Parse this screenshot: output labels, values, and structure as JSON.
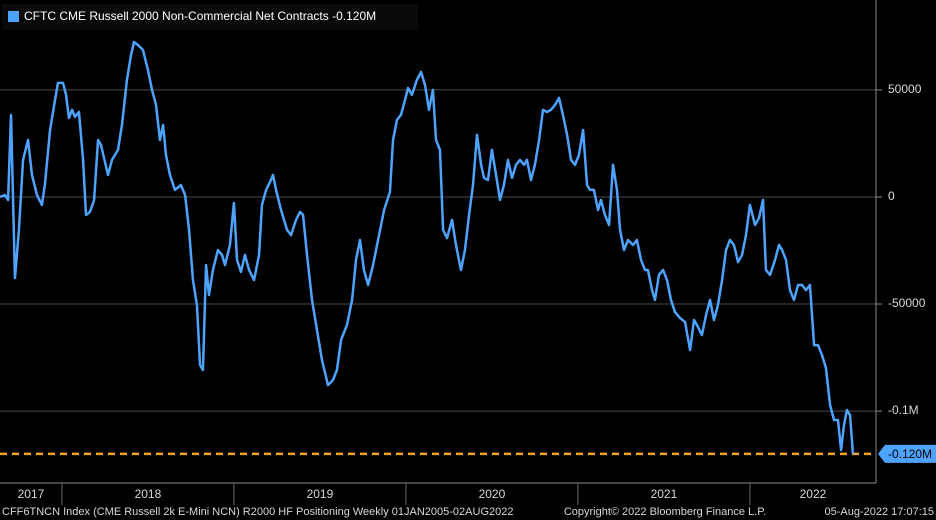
{
  "chart_data": {
    "type": "line",
    "series": [
      {
        "name": "CFTC CME Russell 2000 Non-Commercial Net Contracts",
        "color": "#4da3ff",
        "x": [
          2017.64,
          2017.669,
          2017.687,
          2017.704,
          2017.727,
          2017.75,
          2017.774,
          2017.803,
          2017.826,
          2017.855,
          2017.884,
          2017.902,
          2017.931,
          2017.96,
          2017.977,
          2018.006,
          2018.024,
          2018.041,
          2018.059,
          2018.076,
          2018.099,
          2018.123,
          2018.14,
          2018.163,
          2018.187,
          2018.21,
          2018.227,
          2018.245,
          2018.268,
          2018.291,
          2018.326,
          2018.349,
          2018.378,
          2018.402,
          2018.419,
          2018.442,
          2018.471,
          2018.5,
          2018.524,
          2018.547,
          2018.57,
          2018.588,
          2018.605,
          2018.628,
          2018.657,
          2018.692,
          2018.716,
          2018.739,
          2018.762,
          2018.785,
          2018.803,
          2018.82,
          2018.838,
          2018.855,
          2018.878,
          2018.907,
          2018.931,
          2018.948,
          2018.977,
          2019.0,
          2019.018,
          2019.041,
          2019.064,
          2019.088,
          2019.117,
          2019.146,
          2019.163,
          2019.187,
          2019.21,
          2019.227,
          2019.245,
          2019.274,
          2019.309,
          2019.332,
          2019.361,
          2019.384,
          2019.402,
          2019.425,
          2019.454,
          2019.483,
          2019.512,
          2019.547,
          2019.576,
          2019.599,
          2019.623,
          2019.657,
          2019.687,
          2019.71,
          2019.733,
          2019.756,
          2019.78,
          2019.809,
          2019.838,
          2019.873,
          2019.907,
          2019.925,
          2019.948,
          2019.971,
          2019.995,
          2020.012,
          2020.035,
          2020.064,
          2020.088,
          2020.111,
          2020.134,
          2020.157,
          2020.175,
          2020.198,
          2020.216,
          2020.239,
          2020.268,
          2020.291,
          2020.32,
          2020.343,
          2020.367,
          2020.39,
          2020.413,
          2020.437,
          2020.454,
          2020.477,
          2020.5,
          2020.524,
          2020.547,
          2020.57,
          2020.593,
          2020.617,
          2020.64,
          2020.663,
          2020.687,
          2020.704,
          2020.727,
          2020.75,
          2020.774,
          2020.797,
          2020.82,
          2020.843,
          2020.867,
          2020.89,
          2020.913,
          2020.937,
          2020.96,
          2020.983,
          2021.006,
          2021.03,
          2021.053,
          2021.07,
          2021.093,
          2021.117,
          2021.134,
          2021.157,
          2021.181,
          2021.204,
          2021.227,
          2021.245,
          2021.268,
          2021.291,
          2021.32,
          2021.343,
          2021.367,
          2021.39,
          2021.407,
          2021.431,
          2021.448,
          2021.471,
          2021.495,
          2021.518,
          2021.541,
          2021.564,
          2021.593,
          2021.623,
          2021.652,
          2021.675,
          2021.692,
          2021.721,
          2021.745,
          2021.768,
          2021.791,
          2021.814,
          2021.838,
          2021.861,
          2021.884,
          2021.907,
          2021.931,
          2021.954,
          2021.977,
          2022.0,
          2022.03,
          2022.053,
          2022.076,
          2022.093,
          2022.117,
          2022.146,
          2022.169,
          2022.187,
          2022.21,
          2022.233,
          2022.256,
          2022.28,
          2022.303,
          2022.326,
          2022.349,
          2022.373,
          2022.396,
          2022.419,
          2022.442,
          2022.466,
          2022.489,
          2022.512,
          2022.53,
          2022.547,
          2022.564,
          2022.582,
          2022.599
        ],
        "values": [
          0,
          900,
          -1400,
          38300,
          -37900,
          -15400,
          17300,
          26600,
          10300,
          900,
          -3700,
          6500,
          31300,
          45300,
          53300,
          53300,
          47700,
          36900,
          40700,
          37400,
          39700,
          17300,
          -8400,
          -7000,
          -1400,
          26600,
          24300,
          18200,
          10300,
          17300,
          22000,
          33600,
          54700,
          66400,
          72400,
          71000,
          68700,
          59300,
          50000,
          43000,
          26600,
          33600,
          19600,
          10300,
          3300,
          5600,
          900,
          -15400,
          -38800,
          -50500,
          -78500,
          -80800,
          -31800,
          -45800,
          -34100,
          -24800,
          -27100,
          -31800,
          -22400,
          -2800,
          -29400,
          -35000,
          -27100,
          -34100,
          -38800,
          -27100,
          -3700,
          3300,
          7000,
          10300,
          3300,
          -6100,
          -15400,
          -17800,
          -10700,
          -7000,
          -8400,
          -27100,
          -48100,
          -62200,
          -76200,
          -87900,
          -85500,
          -80800,
          -66800,
          -59800,
          -48100,
          -29400,
          -20100,
          -34100,
          -41100,
          -31800,
          -20100,
          -6100,
          2300,
          26600,
          36000,
          38300,
          45300,
          50900,
          47700,
          54700,
          58400,
          52300,
          40700,
          50000,
          26600,
          22000,
          -15400,
          -19200,
          -10700,
          -22400,
          -34100,
          -24800,
          -8400,
          5600,
          29000,
          15000,
          8900,
          7900,
          22000,
          10300,
          -1400,
          5600,
          17300,
          8900,
          15000,
          17300,
          15000,
          17300,
          7900,
          15000,
          26600,
          40700,
          39700,
          40700,
          43000,
          46300,
          38300,
          29000,
          17300,
          15000,
          19600,
          31300,
          5600,
          3300,
          3300,
          -6100,
          -1400,
          -8400,
          -13100,
          15000,
          3300,
          -15400,
          -24800,
          -20100,
          -22400,
          -20100,
          -29400,
          -34100,
          -34100,
          -43500,
          -48100,
          -36400,
          -34100,
          -38800,
          -48100,
          -53700,
          -56500,
          -58400,
          -71500,
          -57500,
          -59800,
          -64500,
          -55100,
          -48100,
          -57500,
          -50500,
          -38800,
          -24800,
          -20100,
          -22400,
          -30400,
          -27100,
          -17800,
          -3700,
          -13100,
          -9800,
          -1400,
          -34100,
          -36400,
          -29400,
          -22400,
          -24800,
          -29400,
          -43500,
          -48100,
          -41100,
          -41100,
          -43500,
          -41100,
          -69200,
          -69200,
          -73800,
          -79900,
          -97200,
          -104200,
          -104200,
          -118200,
          -106500,
          -99500,
          -101900,
          -120000
        ]
      }
    ],
    "current": {
      "value": -120000,
      "label": "-0.120M",
      "color": "#f5a623"
    },
    "xlim": [
      2017.64,
      2022.733
    ],
    "xticks": [
      2017,
      2018,
      2019,
      2020,
      2021,
      2022
    ],
    "ylim": [
      -133600,
      92000
    ],
    "yticks": [
      50000,
      0,
      -50000,
      {
        "value": -100000,
        "label": "-0.1M"
      }
    ],
    "grid": true,
    "footer": {
      "description": "CFF6TNCN Index (CME Russell 2k E-Mini NCN) R2000 HF Positioning  Weekly 01JAN2005-02AUG2022",
      "copyright": "Copyright© 2022 Bloomberg Finance L.P.",
      "timestamp": "05-Aug-2022 17:07:15"
    }
  }
}
